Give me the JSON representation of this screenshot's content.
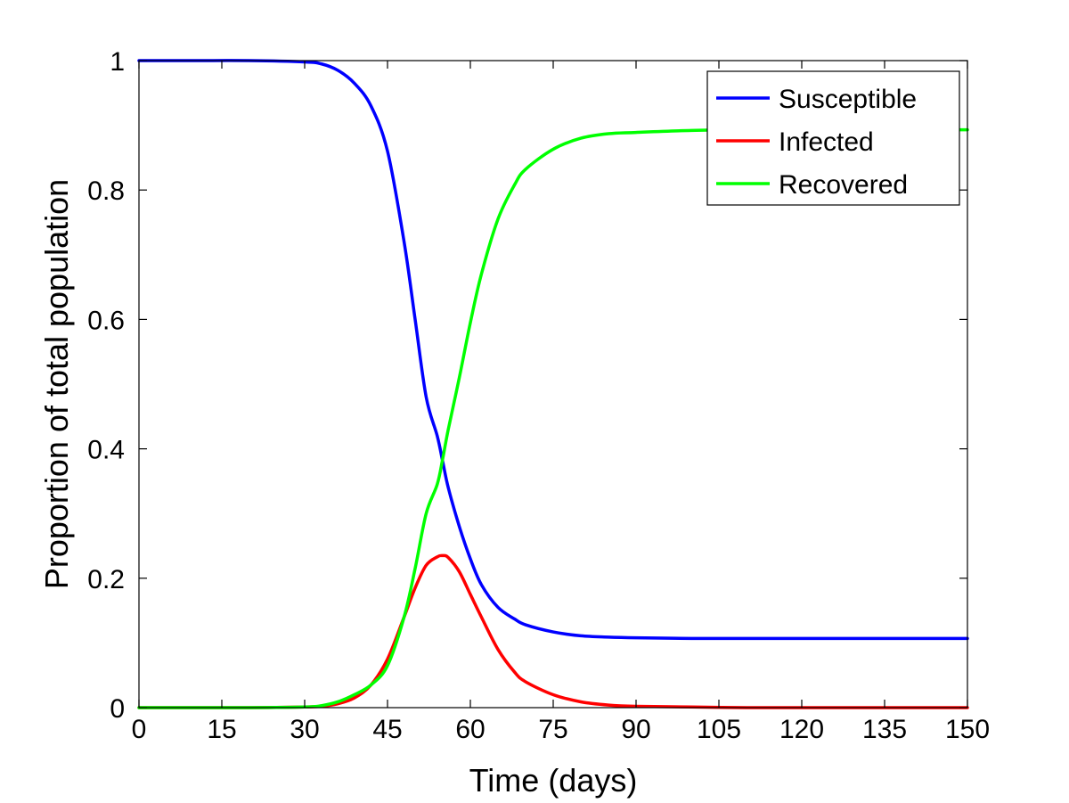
{
  "chart_data": {
    "type": "line",
    "title": "",
    "xlabel": "Time (days)",
    "ylabel": "Proportion of total population",
    "xlim": [
      0,
      150
    ],
    "ylim": [
      0,
      1
    ],
    "xticks": [
      0,
      15,
      30,
      45,
      60,
      75,
      90,
      105,
      120,
      135,
      150
    ],
    "yticks": [
      0,
      0.2,
      0.4,
      0.6,
      0.8,
      1
    ],
    "ytick_labels": [
      "0",
      "0.2",
      "0.4",
      "0.6",
      "0.8",
      "1"
    ],
    "grid": false,
    "legend": "top-right",
    "x": [
      0,
      10,
      20,
      30,
      33,
      36,
      39,
      42,
      45,
      48,
      50,
      52,
      54,
      55,
      56,
      58,
      60,
      62,
      65,
      68,
      70,
      75,
      80,
      85,
      90,
      100,
      110,
      120,
      135,
      150
    ],
    "series": [
      {
        "name": "Susceptible",
        "color": "#0000ff",
        "values": [
          1.0,
          1.0,
          1.0,
          0.998,
          0.995,
          0.985,
          0.965,
          0.93,
          0.86,
          0.72,
          0.6,
          0.48,
          0.42,
          0.38,
          0.34,
          0.28,
          0.23,
          0.19,
          0.155,
          0.137,
          0.128,
          0.117,
          0.111,
          0.109,
          0.108,
          0.107,
          0.107,
          0.107,
          0.107,
          0.107
        ]
      },
      {
        "name": "Infected",
        "color": "#ff0000",
        "values": [
          0.0,
          0.0,
          0.0,
          0.001,
          0.002,
          0.006,
          0.015,
          0.035,
          0.075,
          0.14,
          0.185,
          0.22,
          0.233,
          0.235,
          0.232,
          0.21,
          0.175,
          0.14,
          0.09,
          0.055,
          0.04,
          0.02,
          0.009,
          0.004,
          0.002,
          0.001,
          0.0,
          0.0,
          0.0,
          0.0
        ]
      },
      {
        "name": "Recovered",
        "color": "#00ff00",
        "values": [
          0.0,
          0.0,
          0.0,
          0.001,
          0.003,
          0.009,
          0.02,
          0.035,
          0.065,
          0.14,
          0.215,
          0.3,
          0.345,
          0.385,
          0.43,
          0.51,
          0.595,
          0.67,
          0.755,
          0.808,
          0.832,
          0.863,
          0.88,
          0.887,
          0.889,
          0.892,
          0.893,
          0.893,
          0.893,
          0.893
        ]
      }
    ]
  }
}
